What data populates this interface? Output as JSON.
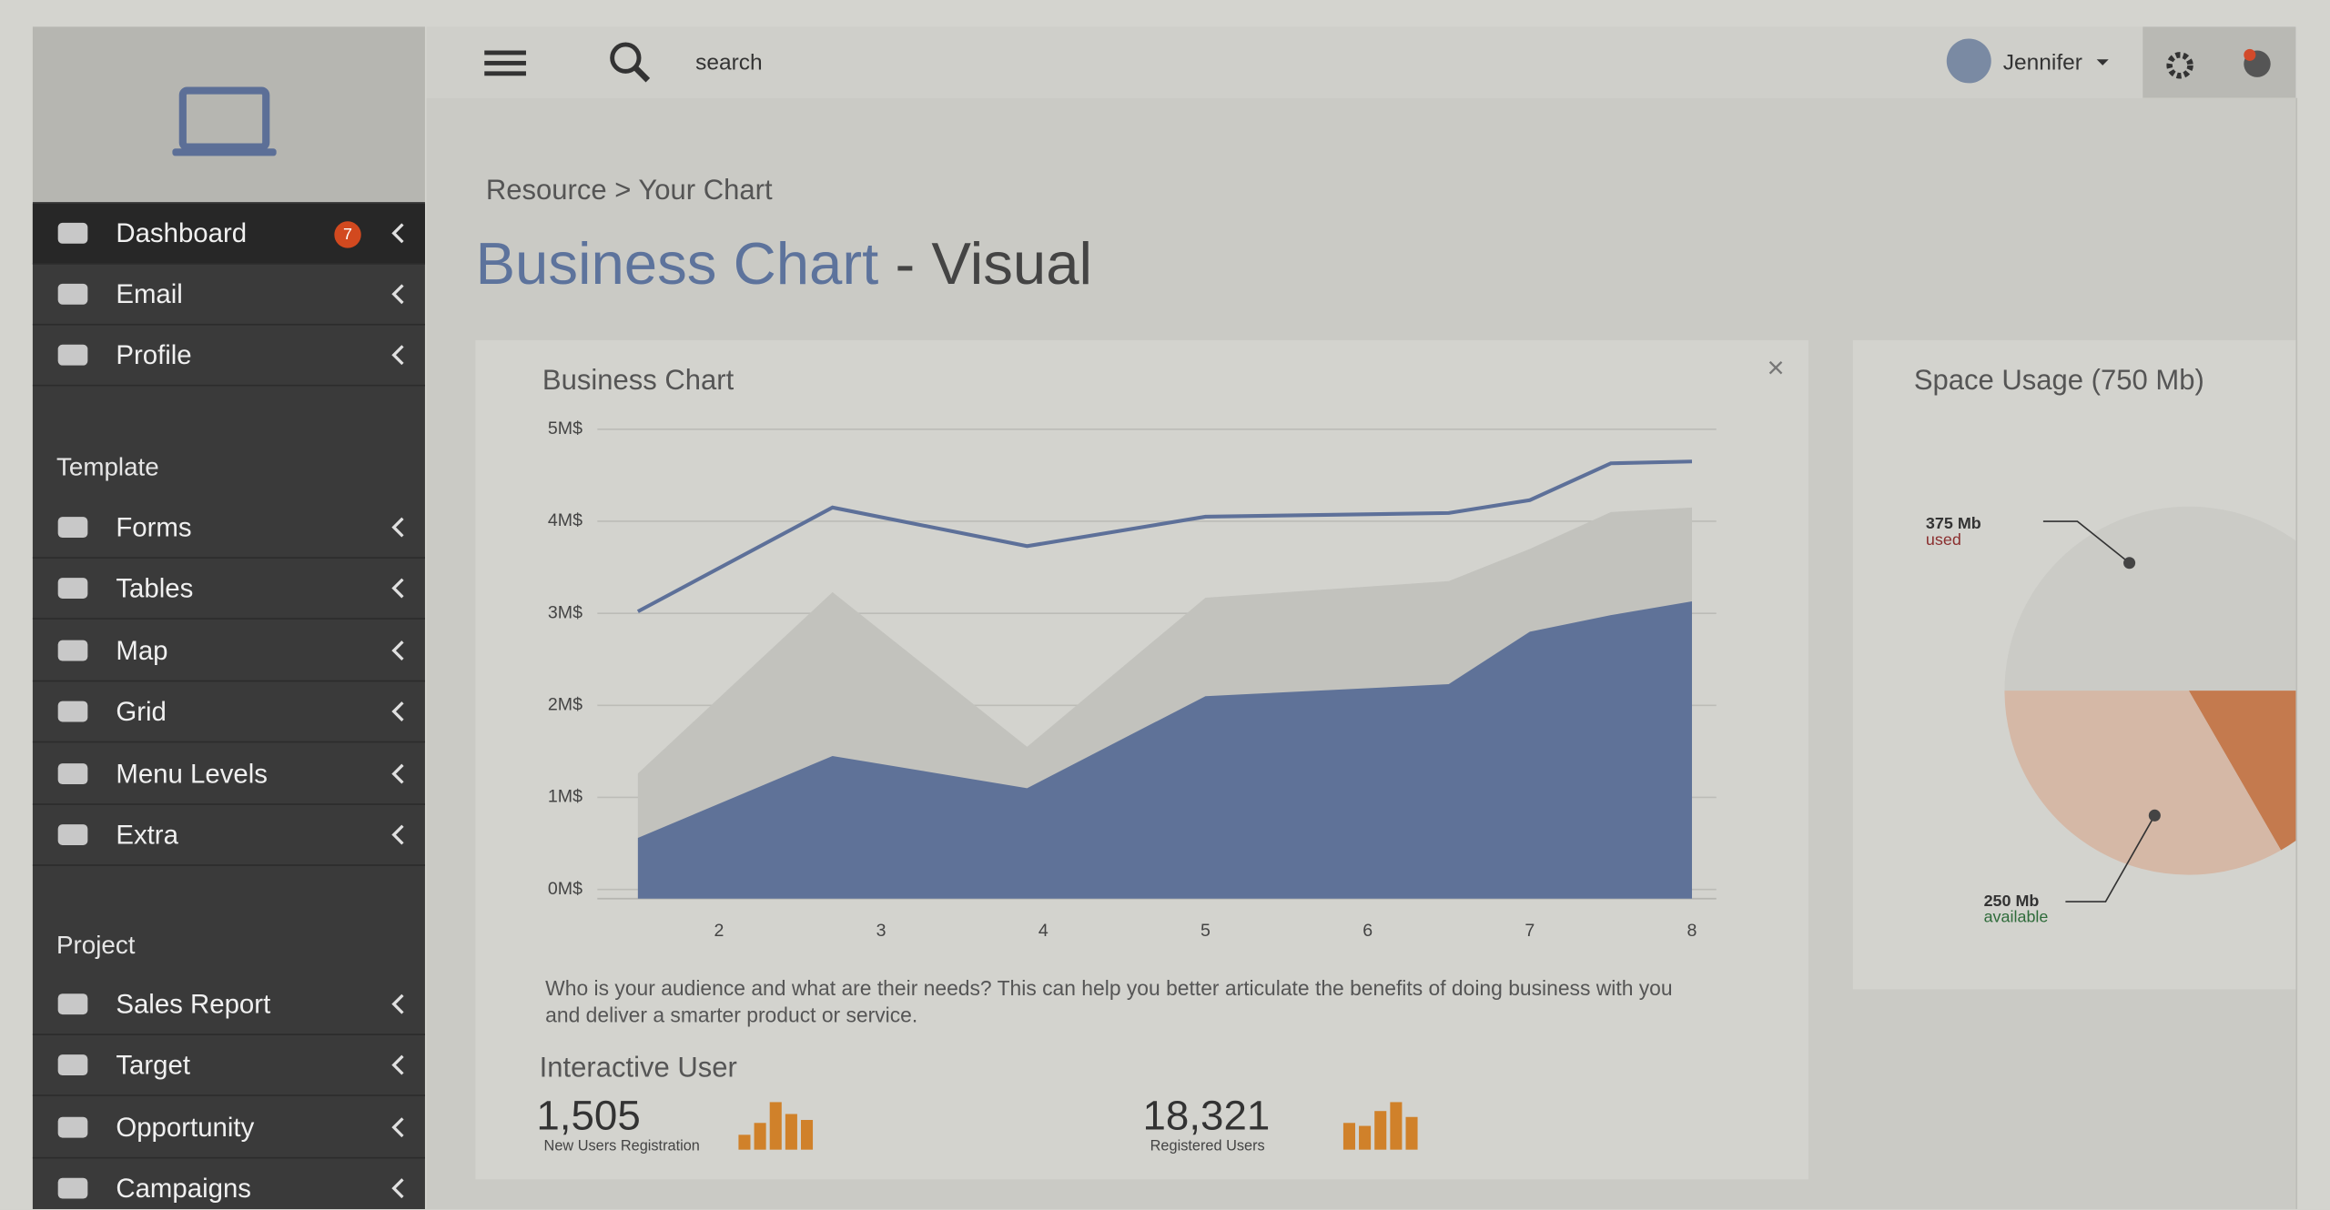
{
  "header": {
    "search": "search",
    "user": "Jennifer"
  },
  "sidebar": {
    "menu": [
      {
        "label": "Dashboard",
        "badge": 7
      },
      {
        "label": "Email"
      },
      {
        "label": "Profile"
      }
    ],
    "sections": [
      {
        "title": "Template",
        "items": [
          "Forms",
          "Tables",
          "Map",
          "Grid",
          "Menu Levels",
          "Extra"
        ]
      },
      {
        "title": "Project",
        "items": [
          "Sales Report",
          "Target",
          "Opportunity",
          "Campaigns"
        ]
      }
    ]
  },
  "breadcrumb": "Resource > Your Chart",
  "page_title": {
    "main": "Business Chart",
    "rest": "- Visual"
  },
  "chart_data": [
    {
      "type": "area",
      "title": "Business Chart",
      "x": [
        1.5,
        2.7,
        3.9,
        5.0,
        6.5,
        7.0,
        7.5,
        8.0
      ],
      "xlim": [
        1.25,
        8.15
      ],
      "xticks": [
        2,
        3,
        4,
        5,
        6,
        7,
        8
      ],
      "ylim": [
        -0.1,
        5
      ],
      "yticks": [
        {
          "value": 0,
          "label": "0M$"
        },
        {
          "value": 1,
          "label": "1M$"
        },
        {
          "value": 2,
          "label": "2M$"
        },
        {
          "value": 3,
          "label": "3M$"
        },
        {
          "value": 4,
          "label": "4M$"
        },
        {
          "value": 5,
          "label": "5M$"
        }
      ],
      "grid": true,
      "series": [
        {
          "kind": "area",
          "color": "#c2c2bd",
          "values": [
            1.26,
            3.23,
            1.55,
            3.17,
            3.35,
            3.7,
            4.1,
            4.15
          ]
        },
        {
          "kind": "area",
          "color": "#5f7298",
          "values": [
            0.56,
            1.45,
            1.1,
            2.1,
            2.23,
            2.8,
            2.98,
            3.13
          ]
        },
        {
          "kind": "line",
          "color": "#5d7099",
          "values": [
            3.02,
            4.15,
            3.73,
            4.05,
            4.09,
            4.23,
            4.63,
            4.65
          ]
        }
      ]
    },
    {
      "type": "pie",
      "title": "Space Usage (750 Mb)",
      "categories": [
        "used",
        null,
        "available"
      ],
      "values": [
        375,
        125,
        250
      ],
      "value_labels": [
        "375 Mb",
        null,
        "250 Mb"
      ],
      "colors": [
        "#cbcbc6",
        "#c47a4e",
        "#d5b8a6"
      ]
    }
  ],
  "description": "Who is your audience and what are their needs? This can help you better articulate the benefits of doing business with you and deliver a smarter product or service.",
  "stats": {
    "title": "Interactive User",
    "items": [
      {
        "value": "1,505",
        "caption": "New Users Registration",
        "bars": [
          10,
          18,
          32,
          24,
          20
        ]
      },
      {
        "value": "18,321",
        "caption": "Registered Users",
        "bars": [
          18,
          16,
          26,
          32,
          22
        ]
      }
    ]
  }
}
